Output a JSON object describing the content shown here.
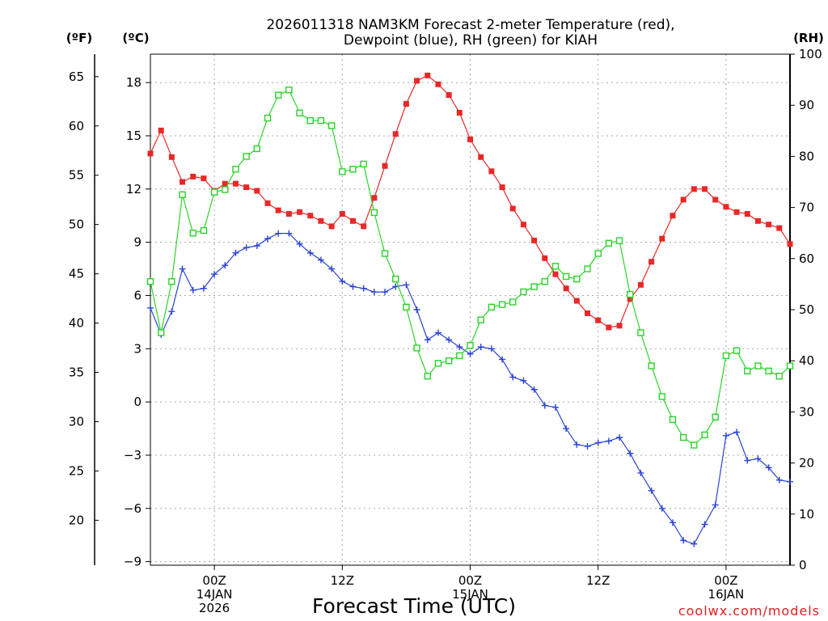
{
  "chart_data": {
    "type": "line",
    "title_lines": [
      "2026011318 NAM3KM Forecast 2-meter Temperature (red),",
      "Dewpoint (blue), RH (green) for KIAH"
    ],
    "units": {
      "fahrenheit": "(ºF)",
      "celsius": "(ºC)",
      "rh": "(RH)"
    },
    "xlabel": "Forecast Time (UTC)",
    "credit": "coolwx.com/models",
    "x_hours": [
      0,
      1,
      2,
      3,
      4,
      5,
      6,
      7,
      8,
      9,
      10,
      11,
      12,
      13,
      14,
      15,
      16,
      17,
      18,
      19,
      20,
      21,
      22,
      23,
      24,
      25,
      26,
      27,
      28,
      29,
      30,
      31,
      32,
      33,
      34,
      35,
      36,
      37,
      38,
      39,
      40,
      41,
      42,
      43,
      44,
      45,
      46,
      47,
      48,
      49,
      50,
      51,
      52,
      53,
      54,
      55,
      56,
      57,
      58,
      59,
      60
    ],
    "xlim": [
      0,
      60
    ],
    "x_ticks": [
      {
        "hour": 6,
        "lines": [
          "00Z",
          "14JAN",
          "2026"
        ]
      },
      {
        "hour": 18,
        "lines": [
          "12Z"
        ]
      },
      {
        "hour": 30,
        "lines": [
          "00Z",
          "15JAN"
        ]
      },
      {
        "hour": 42,
        "lines": [
          "12Z"
        ]
      },
      {
        "hour": 54,
        "lines": [
          "00Z",
          "16JAN"
        ]
      }
    ],
    "celsius_axis": {
      "ylim": [
        -9.2,
        19.6
      ],
      "ticks": [
        18,
        15,
        12,
        9,
        6,
        3,
        0,
        -3,
        -6,
        -9
      ],
      "tick_labels": [
        "18",
        "15",
        "12",
        "9",
        "6",
        "3",
        "0",
        "−3",
        "−6",
        "−9"
      ]
    },
    "fahrenheit_axis": {
      "ticks": [
        65,
        60,
        55,
        50,
        45,
        40,
        35,
        30,
        25,
        20
      ]
    },
    "rh_axis": {
      "ylim": [
        0,
        100
      ],
      "ticks": [
        100,
        90,
        80,
        70,
        60,
        50,
        40,
        30,
        20,
        10,
        0
      ]
    },
    "series": [
      {
        "name": "Temperature",
        "units": "C",
        "color": "#e82828",
        "marker": "filled-square",
        "values": [
          14.0,
          15.3,
          13.8,
          12.4,
          12.7,
          12.6,
          11.9,
          12.3,
          12.3,
          12.1,
          11.9,
          11.2,
          10.8,
          10.6,
          10.7,
          10.5,
          10.2,
          9.9,
          10.6,
          10.2,
          9.9,
          11.5,
          13.3,
          15.1,
          16.8,
          18.1,
          18.4,
          17.9,
          17.3,
          16.3,
          14.8,
          13.8,
          13.0,
          12.1,
          10.9,
          10.0,
          9.1,
          8.1,
          7.2,
          6.4,
          5.7,
          5.0,
          4.6,
          4.2,
          4.3,
          5.8,
          6.6,
          7.9,
          9.2,
          10.5,
          11.4,
          12.0,
          12.0,
          11.4,
          11.0,
          10.7,
          10.6,
          10.2,
          10.0,
          9.8,
          8.9
        ]
      },
      {
        "name": "Dewpoint",
        "units": "C",
        "color": "#2a44d8",
        "marker": "plus",
        "values": [
          5.3,
          3.8,
          5.1,
          7.5,
          6.3,
          6.4,
          7.2,
          7.7,
          8.4,
          8.7,
          8.8,
          9.2,
          9.5,
          9.5,
          8.9,
          8.4,
          8.0,
          7.5,
          6.8,
          6.5,
          6.4,
          6.2,
          6.2,
          6.5,
          6.6,
          5.2,
          3.5,
          3.9,
          3.5,
          3.1,
          2.7,
          3.1,
          3.0,
          2.4,
          1.4,
          1.2,
          0.7,
          -0.2,
          -0.3,
          -1.5,
          -2.4,
          -2.5,
          -2.3,
          -2.2,
          -2.0,
          -2.9,
          -4.0,
          -5.0,
          -6.0,
          -6.8,
          -7.8,
          -8.0,
          -6.9,
          -5.8,
          -1.9,
          -1.7,
          -3.3,
          -3.2,
          -3.7,
          -4.4,
          -4.5
        ]
      },
      {
        "name": "RH",
        "units": "%",
        "color": "#2ad42a",
        "marker": "open-square",
        "values": [
          55.5,
          45.5,
          55.5,
          72.5,
          65.0,
          65.5,
          73.0,
          73.5,
          77.5,
          80.0,
          81.5,
          87.5,
          92.0,
          93.0,
          88.5,
          87.0,
          87.0,
          86.0,
          77.0,
          77.5,
          78.5,
          69.0,
          61.0,
          56.0,
          50.5,
          42.5,
          37.0,
          39.5,
          40.0,
          41.0,
          43.0,
          48.0,
          50.5,
          51.0,
          51.5,
          53.5,
          54.5,
          55.5,
          58.5,
          56.5,
          56.0,
          58.0,
          61.0,
          63.0,
          63.5,
          53.0,
          45.5,
          39.0,
          33.0,
          28.5,
          25.0,
          23.5,
          25.5,
          29.0,
          41.0,
          42.0,
          38.0,
          39.0,
          38.0,
          37.0,
          39.0
        ]
      }
    ]
  }
}
